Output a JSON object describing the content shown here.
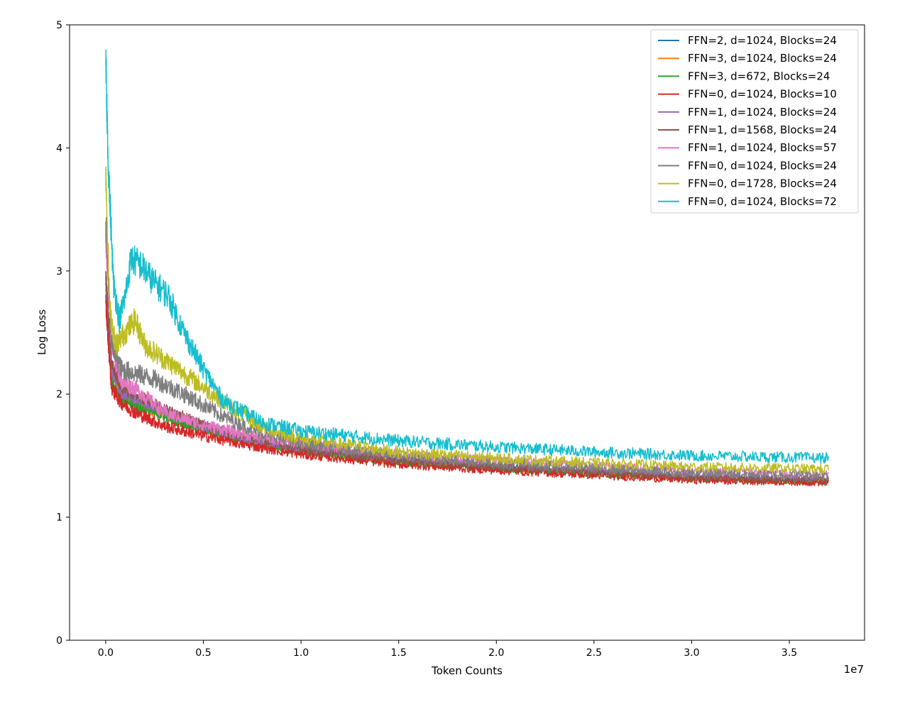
{
  "chart_data": {
    "type": "line",
    "title": "",
    "xlabel": "Token Counts",
    "ylabel": "Log Loss",
    "x_offset_label": "1e7",
    "xlim": [
      -0.185,
      3.885
    ],
    "ylim": [
      0,
      5
    ],
    "x_ticks": [
      0,
      0.5,
      1,
      1.5,
      2,
      2.5,
      3,
      3.5
    ],
    "x_tick_labels": [
      "0.0",
      "0.5",
      "1.0",
      "1.5",
      "2.0",
      "2.5",
      "3.0",
      "3.5"
    ],
    "y_ticks": [
      0,
      1,
      2,
      3,
      4,
      5
    ],
    "y_tick_labels": [
      "0",
      "1",
      "2",
      "3",
      "4",
      "5"
    ],
    "grid": false,
    "legend_position": "top-right",
    "series": [
      {
        "name": "FFN=2, d=1024, Blocks=24",
        "color": "#1f77b4",
        "x": [
          0.0,
          0.03,
          0.08,
          0.15,
          0.3,
          0.5,
          0.75,
          1.0,
          1.5,
          2.0,
          2.5,
          3.0,
          3.7
        ],
        "y": [
          2.9,
          2.2,
          2.0,
          1.93,
          1.85,
          1.73,
          1.62,
          1.55,
          1.46,
          1.41,
          1.37,
          1.33,
          1.3
        ],
        "noise": 0.025
      },
      {
        "name": "FFN=3, d=1024, Blocks=24",
        "color": "#ff7f0e",
        "x": [
          0.0,
          0.03,
          0.08,
          0.15,
          0.3,
          0.5,
          0.75,
          1.0,
          1.5,
          2.0,
          2.5,
          3.0,
          3.7
        ],
        "y": [
          2.85,
          2.15,
          1.98,
          1.91,
          1.83,
          1.72,
          1.61,
          1.54,
          1.45,
          1.4,
          1.36,
          1.32,
          1.29
        ],
        "noise": 0.025
      },
      {
        "name": "FFN=3, d=672, Blocks=24",
        "color": "#2ca02c",
        "x": [
          0.0,
          0.03,
          0.08,
          0.15,
          0.3,
          0.5,
          0.75,
          1.0,
          1.5,
          2.0,
          2.5,
          3.0,
          3.7
        ],
        "y": [
          2.8,
          2.1,
          1.97,
          1.9,
          1.82,
          1.71,
          1.6,
          1.53,
          1.44,
          1.39,
          1.35,
          1.31,
          1.28
        ],
        "noise": 0.025
      },
      {
        "name": "FFN=0, d=1024, Blocks=10",
        "color": "#d62728",
        "x": [
          0.0,
          0.03,
          0.08,
          0.15,
          0.3,
          0.5,
          0.75,
          1.0,
          1.5,
          2.0,
          2.5,
          3.0,
          3.7
        ],
        "y": [
          2.75,
          2.05,
          1.93,
          1.85,
          1.74,
          1.66,
          1.58,
          1.51,
          1.43,
          1.38,
          1.34,
          1.3,
          1.28
        ],
        "noise": 0.03
      },
      {
        "name": "FFN=1, d=1024, Blocks=24",
        "color": "#9467bd",
        "x": [
          0.0,
          0.03,
          0.08,
          0.15,
          0.3,
          0.5,
          0.75,
          1.0,
          1.5,
          2.0,
          2.5,
          3.0,
          3.7
        ],
        "y": [
          2.95,
          2.2,
          2.02,
          1.96,
          1.86,
          1.74,
          1.63,
          1.56,
          1.47,
          1.42,
          1.38,
          1.34,
          1.31
        ],
        "noise": 0.025
      },
      {
        "name": "FFN=1, d=1568, Blocks=24",
        "color": "#8c564b",
        "x": [
          0.0,
          0.03,
          0.08,
          0.15,
          0.3,
          0.5,
          0.75,
          1.0,
          1.5,
          2.0,
          2.5,
          3.0,
          3.7
        ],
        "y": [
          3.0,
          2.25,
          2.05,
          2.0,
          1.88,
          1.75,
          1.64,
          1.56,
          1.46,
          1.41,
          1.37,
          1.32,
          1.3
        ],
        "noise": 0.025
      },
      {
        "name": "FFN=1, d=1024, Blocks=57",
        "color": "#e377c2",
        "x": [
          0.0,
          0.03,
          0.08,
          0.15,
          0.3,
          0.5,
          0.75,
          1.0,
          1.5,
          2.0,
          2.5,
          3.0,
          3.7
        ],
        "y": [
          3.3,
          2.4,
          2.1,
          2.05,
          1.85,
          1.75,
          1.66,
          1.6,
          1.51,
          1.46,
          1.42,
          1.38,
          1.35
        ],
        "noise": 0.03
      },
      {
        "name": "FFN=0, d=1024, Blocks=24",
        "color": "#7f7f7f",
        "x": [
          0.0,
          0.03,
          0.08,
          0.15,
          0.25,
          0.4,
          0.6,
          0.8,
          1.0,
          1.5,
          2.0,
          2.5,
          3.0,
          3.7
        ],
        "y": [
          3.4,
          2.4,
          2.2,
          2.17,
          2.12,
          2.0,
          1.82,
          1.68,
          1.6,
          1.5,
          1.44,
          1.4,
          1.36,
          1.34
        ],
        "noise": 0.035
      },
      {
        "name": "FFN=0, d=1728, Blocks=24",
        "color": "#bcbd22",
        "x": [
          0.0,
          0.02,
          0.05,
          0.1,
          0.15,
          0.2,
          0.3,
          0.4,
          0.6,
          0.8,
          1.0,
          1.5,
          2.0,
          2.5,
          3.0,
          3.7
        ],
        "y": [
          3.85,
          2.7,
          2.4,
          2.5,
          2.6,
          2.4,
          2.28,
          2.17,
          1.94,
          1.73,
          1.64,
          1.53,
          1.48,
          1.44,
          1.41,
          1.39
        ],
        "noise": 0.035
      },
      {
        "name": "FFN=0, d=1024, Blocks=72",
        "color": "#17becf",
        "x": [
          0.0,
          0.015,
          0.04,
          0.07,
          0.1,
          0.13,
          0.18,
          0.25,
          0.32,
          0.4,
          0.5,
          0.6,
          0.8,
          1.0,
          1.5,
          2.0,
          2.5,
          3.0,
          3.7
        ],
        "y": [
          4.7,
          3.8,
          2.9,
          2.6,
          2.8,
          3.1,
          3.05,
          2.9,
          2.8,
          2.5,
          2.2,
          1.95,
          1.77,
          1.7,
          1.62,
          1.57,
          1.53,
          1.5,
          1.48
        ],
        "noise": 0.035
      }
    ]
  }
}
